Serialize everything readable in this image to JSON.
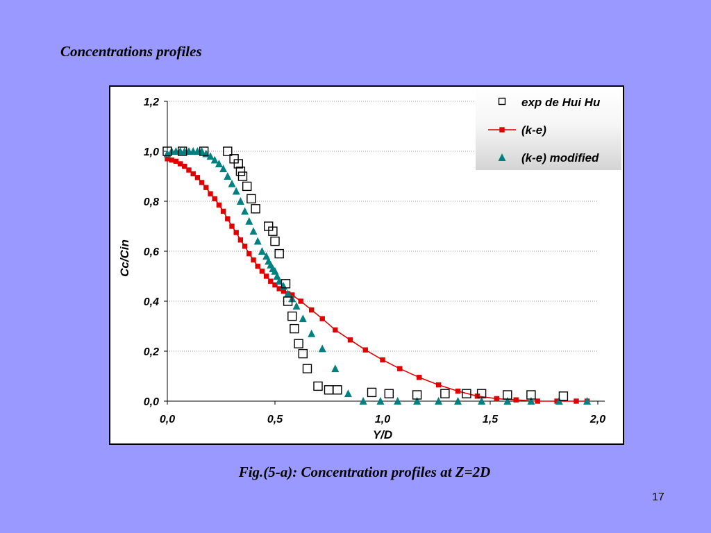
{
  "slide": {
    "title": "Concentrations profiles",
    "caption": "Fig.(5-a): Concentration profiles at Z=2D",
    "page_number": "17",
    "background_color": "#9999ff"
  },
  "chart_data": {
    "type": "scatter",
    "title": "",
    "xlabel": "Y/D",
    "ylabel": "Cc/Cin",
    "xlim": [
      0,
      2
    ],
    "ylim": [
      0,
      1.2
    ],
    "x_ticks": [
      "0,0",
      "0,5",
      "1,0",
      "1,5",
      "2,0"
    ],
    "y_ticks": [
      "0,0",
      "0,2",
      "0,4",
      "0,6",
      "0,8",
      "1,0",
      "1,2"
    ],
    "grid": "horizontal dotted",
    "legend_position": "top-right",
    "series": [
      {
        "name": "exp de Hui Hu",
        "marker": "hollow-square",
        "color": "#000000",
        "x": [
          0.0,
          0.07,
          0.17,
          0.28,
          0.31,
          0.33,
          0.34,
          0.35,
          0.37,
          0.39,
          0.41,
          0.47,
          0.49,
          0.5,
          0.52,
          0.55,
          0.56,
          0.58,
          0.59,
          0.61,
          0.63,
          0.65,
          0.7,
          0.75,
          0.79,
          0.95,
          1.03,
          1.16,
          1.29,
          1.39,
          1.46,
          1.58,
          1.69,
          1.84
        ],
        "y": [
          1.0,
          1.0,
          1.0,
          1.0,
          0.97,
          0.95,
          0.92,
          0.9,
          0.86,
          0.81,
          0.77,
          0.7,
          0.68,
          0.64,
          0.59,
          0.47,
          0.4,
          0.34,
          0.29,
          0.23,
          0.19,
          0.13,
          0.06,
          0.045,
          0.045,
          0.035,
          0.03,
          0.025,
          0.03,
          0.03,
          0.03,
          0.025,
          0.025,
          0.02
        ]
      },
      {
        "name": "(k-e)",
        "marker": "filled-square-line",
        "color": "#e00000",
        "x": [
          0.0,
          0.02,
          0.04,
          0.06,
          0.08,
          0.1,
          0.12,
          0.14,
          0.16,
          0.18,
          0.2,
          0.22,
          0.24,
          0.26,
          0.28,
          0.3,
          0.32,
          0.34,
          0.36,
          0.38,
          0.4,
          0.42,
          0.44,
          0.46,
          0.48,
          0.5,
          0.52,
          0.54,
          0.56,
          0.58,
          0.62,
          0.67,
          0.72,
          0.78,
          0.85,
          0.92,
          1.0,
          1.08,
          1.17,
          1.26,
          1.35,
          1.44,
          1.53,
          1.62,
          1.72,
          1.81,
          1.9,
          1.95
        ],
        "y": [
          0.97,
          0.965,
          0.96,
          0.95,
          0.94,
          0.925,
          0.91,
          0.895,
          0.875,
          0.855,
          0.83,
          0.81,
          0.785,
          0.76,
          0.73,
          0.7,
          0.675,
          0.645,
          0.62,
          0.59,
          0.565,
          0.54,
          0.52,
          0.5,
          0.48,
          0.465,
          0.45,
          0.44,
          0.43,
          0.425,
          0.4,
          0.365,
          0.33,
          0.285,
          0.245,
          0.205,
          0.165,
          0.13,
          0.095,
          0.065,
          0.04,
          0.02,
          0.01,
          0.005,
          0.0,
          0.0,
          0.0,
          0.0
        ]
      },
      {
        "name": "(k-e) modified",
        "marker": "filled-triangle",
        "color": "#008080",
        "x": [
          0.0,
          0.02,
          0.04,
          0.06,
          0.08,
          0.1,
          0.12,
          0.14,
          0.16,
          0.18,
          0.2,
          0.22,
          0.24,
          0.26,
          0.28,
          0.3,
          0.32,
          0.34,
          0.36,
          0.38,
          0.4,
          0.42,
          0.44,
          0.46,
          0.47,
          0.48,
          0.49,
          0.5,
          0.51,
          0.52,
          0.54,
          0.56,
          0.58,
          0.6,
          0.63,
          0.67,
          0.72,
          0.78,
          0.84,
          0.91,
          0.99,
          1.07,
          1.16,
          1.26,
          1.35,
          1.46,
          1.58,
          1.69,
          1.82,
          1.95
        ],
        "y": [
          0.99,
          1.0,
          1.0,
          1.0,
          1.0,
          1.0,
          1.0,
          1.0,
          1.0,
          0.99,
          0.98,
          0.965,
          0.95,
          0.93,
          0.9,
          0.87,
          0.84,
          0.8,
          0.76,
          0.72,
          0.68,
          0.64,
          0.6,
          0.58,
          0.56,
          0.545,
          0.53,
          0.52,
          0.5,
          0.48,
          0.46,
          0.43,
          0.41,
          0.38,
          0.33,
          0.27,
          0.21,
          0.13,
          0.03,
          0.0,
          0.0,
          0.0,
          0.0,
          0.0,
          0.0,
          0.0,
          0.0,
          0.0,
          0.0,
          0.0
        ]
      }
    ]
  }
}
